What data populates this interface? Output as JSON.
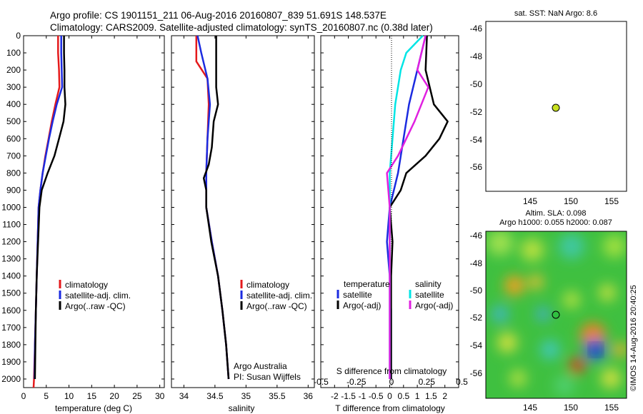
{
  "header": {
    "line1": "Argo profile: CS 1901151_211 06-Aug-2016 20160807_839 51.691S 148.537E",
    "line2": "Climatology: CARS2009. Satellite-adjusted climatology: synTS_20160807.nc (0.38d later)"
  },
  "colors": {
    "climatology": "#e41a1c",
    "satellite": "#1b2be0",
    "argo": "#000000",
    "sal_sat": "#00e5e5",
    "sal_argo": "#e020e0",
    "argo_dot": "#c8e020"
  },
  "chart_data": [
    {
      "type": "line",
      "panel": "temperature",
      "xlabel": "temperature (deg C)",
      "xlim": [
        0,
        31
      ],
      "xticks": [
        0,
        5,
        10,
        15,
        20,
        25,
        30
      ],
      "ylim": [
        0,
        2050
      ],
      "yticks": [
        0,
        100,
        200,
        300,
        400,
        500,
        600,
        700,
        800,
        900,
        1000,
        1100,
        1200,
        1300,
        1400,
        1500,
        1600,
        1700,
        1800,
        1900,
        2000
      ],
      "legend": [
        "climatology",
        "satellite-adj. clim.",
        "Argo(..raw -QC)"
      ],
      "series": [
        {
          "name": "climatology",
          "color_key": "climatology",
          "points": [
            [
              7.6,
              0
            ],
            [
              7.6,
              100
            ],
            [
              7.8,
              200
            ],
            [
              7.9,
              300
            ],
            [
              7.0,
              400
            ],
            [
              6.2,
              500
            ],
            [
              5.5,
              600
            ],
            [
              4.8,
              700
            ],
            [
              4.2,
              800
            ],
            [
              3.7,
              900
            ],
            [
              3.3,
              1000
            ],
            [
              3.1,
              1200
            ],
            [
              2.9,
              1400
            ],
            [
              2.7,
              1600
            ],
            [
              2.5,
              1800
            ],
            [
              2.3,
              2000
            ],
            [
              2.2,
              2050
            ]
          ]
        },
        {
          "name": "satellite-adj. clim.",
          "color_key": "satellite",
          "points": [
            [
              8.3,
              0
            ],
            [
              8.3,
              100
            ],
            [
              8.4,
              200
            ],
            [
              8.5,
              300
            ],
            [
              7.3,
              400
            ],
            [
              6.4,
              500
            ],
            [
              5.6,
              600
            ],
            [
              4.9,
              700
            ],
            [
              4.2,
              800
            ],
            [
              3.7,
              900
            ],
            [
              3.3,
              1000
            ],
            [
              3.1,
              1200
            ],
            [
              2.9,
              1400
            ],
            [
              2.7,
              1600
            ],
            [
              2.5,
              1800
            ],
            [
              2.4,
              2000
            ]
          ]
        },
        {
          "name": "Argo(..raw -QC)",
          "color_key": "argo",
          "points": [
            [
              8.9,
              0
            ],
            [
              8.9,
              100
            ],
            [
              9.0,
              200
            ],
            [
              9.0,
              300
            ],
            [
              9.2,
              400
            ],
            [
              8.8,
              500
            ],
            [
              7.8,
              600
            ],
            [
              6.8,
              700
            ],
            [
              5.3,
              800
            ],
            [
              4.0,
              900
            ],
            [
              3.5,
              1000
            ],
            [
              3.2,
              1200
            ],
            [
              2.9,
              1400
            ],
            [
              2.7,
              1600
            ],
            [
              2.6,
              1800
            ],
            [
              2.5,
              2000
            ]
          ]
        }
      ]
    },
    {
      "type": "line",
      "panel": "salinity",
      "xlabel": "salinity",
      "xlim": [
        33.8,
        36.1
      ],
      "xticks": [
        34,
        34.5,
        35,
        35.5,
        36
      ],
      "ylim": [
        0,
        2050
      ],
      "legend": [
        "climatology",
        "satellite-adj. clim.",
        "Argo(..raw -QC)"
      ],
      "series": [
        {
          "name": "climatology",
          "color_key": "climatology",
          "points": [
            [
              34.2,
              0
            ],
            [
              34.2,
              150
            ],
            [
              34.38,
              250
            ],
            [
              34.4,
              400
            ],
            [
              34.38,
              600
            ],
            [
              34.36,
              800
            ],
            [
              34.36,
              1000
            ],
            [
              34.45,
              1200
            ],
            [
              34.55,
              1400
            ],
            [
              34.62,
              1600
            ],
            [
              34.68,
              1800
            ],
            [
              34.72,
              2000
            ]
          ]
        },
        {
          "name": "satellite-adj. clim.",
          "color_key": "satellite",
          "points": [
            [
              34.22,
              0
            ],
            [
              34.28,
              100
            ],
            [
              34.38,
              250
            ],
            [
              34.42,
              400
            ],
            [
              34.38,
              600
            ],
            [
              34.36,
              800
            ],
            [
              34.36,
              1000
            ],
            [
              34.45,
              1200
            ],
            [
              34.55,
              1400
            ],
            [
              34.62,
              1600
            ],
            [
              34.68,
              1800
            ],
            [
              34.72,
              2000
            ]
          ]
        },
        {
          "name": "Argo(..raw -QC)",
          "color_key": "argo",
          "points": [
            [
              34.52,
              0
            ],
            [
              34.52,
              200
            ],
            [
              34.52,
              300
            ],
            [
              34.55,
              400
            ],
            [
              34.48,
              500
            ],
            [
              34.45,
              650
            ],
            [
              34.4,
              750
            ],
            [
              34.32,
              830
            ],
            [
              34.36,
              900
            ],
            [
              34.36,
              1000
            ],
            [
              34.44,
              1200
            ],
            [
              34.55,
              1400
            ],
            [
              34.62,
              1600
            ],
            [
              34.68,
              1800
            ],
            [
              34.72,
              2000
            ]
          ]
        }
      ]
    },
    {
      "type": "line",
      "panel": "difference",
      "xlabel": "T difference from climatology",
      "xlabel_top": "S difference from climatology",
      "xlim": [
        -2.5,
        2.5
      ],
      "xticks": [
        -2,
        -1.5,
        -1,
        -0.5,
        0,
        0.5,
        1,
        1.5,
        2
      ],
      "xticks_top": [
        -0.5,
        -0.25,
        0,
        0.25,
        0.5
      ],
      "ylim": [
        0,
        2050
      ],
      "legend_left_title": "temperature",
      "legend_right_title": "salinity",
      "legend": [
        "satellite",
        "Argo(-adj)",
        "satellite",
        "Argo(-adj)"
      ],
      "series": [
        {
          "name": "temperature satellite",
          "color_key": "satellite",
          "points": [
            [
              1.3,
              0
            ],
            [
              1.0,
              200
            ],
            [
              0.7,
              400
            ],
            [
              0.5,
              600
            ],
            [
              0.3,
              800
            ],
            [
              0.0,
              1000
            ],
            [
              -0.1,
              1200
            ],
            [
              0.0,
              1400
            ],
            [
              0.05,
              1600
            ],
            [
              0.05,
              1800
            ],
            [
              0.05,
              2000
            ]
          ]
        },
        {
          "name": "temperature Argo(-adj)",
          "color_key": "argo",
          "points": [
            [
              1.35,
              0
            ],
            [
              1.3,
              200
            ],
            [
              1.6,
              400
            ],
            [
              2.1,
              500
            ],
            [
              1.8,
              600
            ],
            [
              1.3,
              700
            ],
            [
              0.6,
              800
            ],
            [
              0.4,
              900
            ],
            [
              0.0,
              1000
            ],
            [
              0.1,
              1200
            ],
            [
              0.05,
              1400
            ],
            [
              0.05,
              1600
            ],
            [
              0.05,
              1800
            ],
            [
              0.05,
              2000
            ]
          ]
        },
        {
          "name": "salinity satellite",
          "color_key": "sal_sat",
          "points": [
            [
              1.2,
              0
            ],
            [
              0.6,
              100
            ],
            [
              0.4,
              200
            ],
            [
              0.2,
              400
            ],
            [
              0.1,
              600
            ],
            [
              0.0,
              800
            ],
            [
              0.0,
              1000
            ],
            [
              0.0,
              1400
            ],
            [
              0.0,
              2000
            ]
          ]
        },
        {
          "name": "salinity Argo(-adj)",
          "color_key": "sal_argo",
          "points": [
            [
              1.3,
              0
            ],
            [
              1.0,
              200
            ],
            [
              1.4,
              300
            ],
            [
              0.9,
              500
            ],
            [
              0.3,
              700
            ],
            [
              -0.1,
              800
            ],
            [
              0.0,
              1000
            ],
            [
              0.0,
              1400
            ],
            [
              0.0,
              2000
            ]
          ]
        }
      ]
    }
  ],
  "sst_panel": {
    "title": "sat. SST: NaN Argo: 8.6",
    "xticks": [
      "145",
      "150",
      "155"
    ],
    "yticks": [
      "-46",
      "-48",
      "-50",
      "-52",
      "-54",
      "-56"
    ]
  },
  "sla_panel": {
    "title1": "Altim. SLA: 0.098",
    "title2": "Argo h1000: 0.055 h2000: 0.087",
    "xticks": [
      "145",
      "150",
      "155"
    ],
    "yticks": [
      "-46",
      "-48",
      "-50",
      "-52",
      "-54",
      "-56"
    ],
    "stamp": "©IMOS 14-Aug-2016 20:40:25"
  },
  "credits": {
    "line1": "Argo Australia",
    "line2": "PI: Susan Wijffels"
  }
}
